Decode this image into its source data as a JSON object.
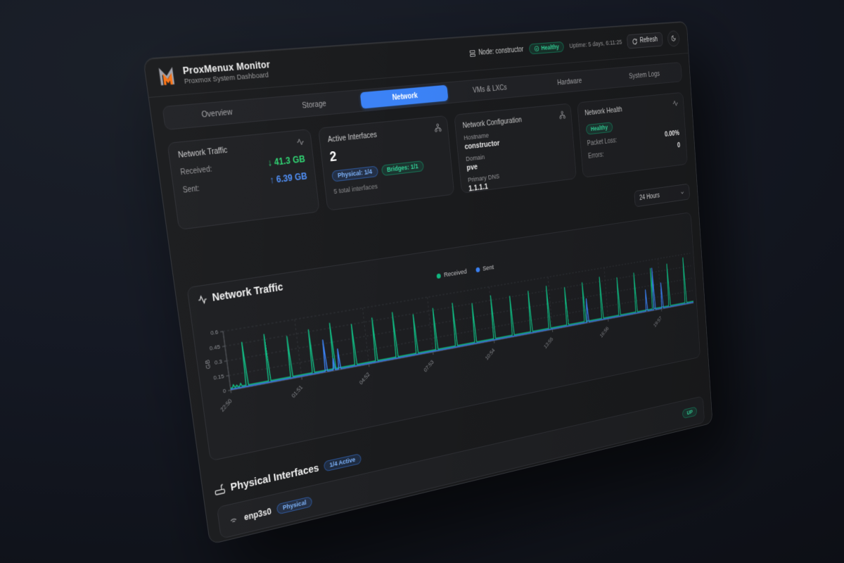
{
  "header": {
    "node_label": "Node: constructor",
    "health_badge": "Healthy",
    "uptime": "Uptime: 5 days, 6:11:25",
    "refresh_label": "Refresh",
    "app_title": "ProxMenux Monitor",
    "app_subtitle": "Proxmox System Dashboard"
  },
  "tabs": {
    "items": [
      "Overview",
      "Storage",
      "Network",
      "VMs & LXCs",
      "Hardware",
      "System Logs"
    ],
    "active": "Network"
  },
  "cards": {
    "traffic": {
      "title": "Network Traffic",
      "received_label": "Received:",
      "received_value": "↓ 41.3 GB",
      "sent_label": "Sent:",
      "sent_value": "↑ 6.39 GB"
    },
    "interfaces": {
      "title": "Active Interfaces",
      "count": "2",
      "badge_physical": "Physical: 1/4",
      "badge_bridges": "Bridges: 1/1",
      "total": "5 total interfaces"
    },
    "config": {
      "title": "Network Configuration",
      "hostname_label": "Hostname",
      "hostname": "constructor",
      "domain_label": "Domain",
      "domain": "pve",
      "dns_label": "Primary DNS",
      "dns": "1.1.1.1"
    },
    "health": {
      "title": "Network Health",
      "status": "Healthy",
      "packet_loss_label": "Packet Loss:",
      "packet_loss": "0.00%",
      "errors_label": "Errors:",
      "errors": "0"
    }
  },
  "range_select": {
    "value": "24 Hours"
  },
  "chart_data": {
    "type": "line",
    "title": "Network Traffic",
    "ylabel": "GB",
    "ylim": [
      0,
      0.6
    ],
    "yticks": [
      0,
      0.15,
      0.3,
      0.45,
      0.6
    ],
    "xticks": [
      "22:50",
      "01:51",
      "04:52",
      "07:53",
      "10:54",
      "13:55",
      "16:56",
      "19:57"
    ],
    "xtick_minutes": [
      0,
      181,
      362,
      543,
      724,
      905,
      1086,
      1267
    ],
    "x_domain_minutes": [
      0,
      1380
    ],
    "grid": "dashed",
    "legend_position": "top",
    "series": [
      {
        "name": "Received",
        "color": "#10b981",
        "baseline_gb": 0.02,
        "spikes_min_gb": [
          [
            8,
            0.05
          ],
          [
            16,
            0.04
          ],
          [
            26,
            0.05
          ],
          [
            42,
            0.46
          ],
          [
            99,
            0.5
          ],
          [
            156,
            0.44
          ],
          [
            213,
            0.47
          ],
          [
            270,
            0.5
          ],
          [
            327,
            0.45
          ],
          [
            384,
            0.48
          ],
          [
            441,
            0.5
          ],
          [
            498,
            0.44
          ],
          [
            555,
            0.47
          ],
          [
            612,
            0.49
          ],
          [
            669,
            0.45
          ],
          [
            726,
            0.5
          ],
          [
            783,
            0.46
          ],
          [
            840,
            0.48
          ],
          [
            897,
            0.5
          ],
          [
            954,
            0.45
          ],
          [
            1011,
            0.47
          ],
          [
            1068,
            0.5
          ],
          [
            1125,
            0.46
          ],
          [
            1182,
            0.48
          ],
          [
            1239,
            0.5
          ],
          [
            1296,
            0.52
          ],
          [
            1353,
            0.56
          ]
        ]
      },
      {
        "name": "Sent",
        "color": "#3b82f6",
        "baseline_gb": 0.008,
        "spikes_min_gb": [
          [
            247,
            0.34
          ],
          [
            268,
            0.13
          ],
          [
            283,
            0.22
          ],
          [
            1020,
            0.28
          ],
          [
            1217,
            0.26
          ],
          [
            1244,
            0.5
          ],
          [
            1271,
            0.31
          ]
        ]
      }
    ]
  },
  "sections": {
    "physical": {
      "title": "Physical Interfaces",
      "badge": "1/4 Active",
      "rows": [
        {
          "name": "enp3s0",
          "type_badge": "Physical",
          "status": "UP"
        }
      ]
    }
  },
  "colors": {
    "accent_blue": "#3b82f6",
    "status_green": "#10b981",
    "received_green": "#2fd573",
    "sent_blue": "#4f8ff7",
    "logo_orange": "#f97316"
  }
}
